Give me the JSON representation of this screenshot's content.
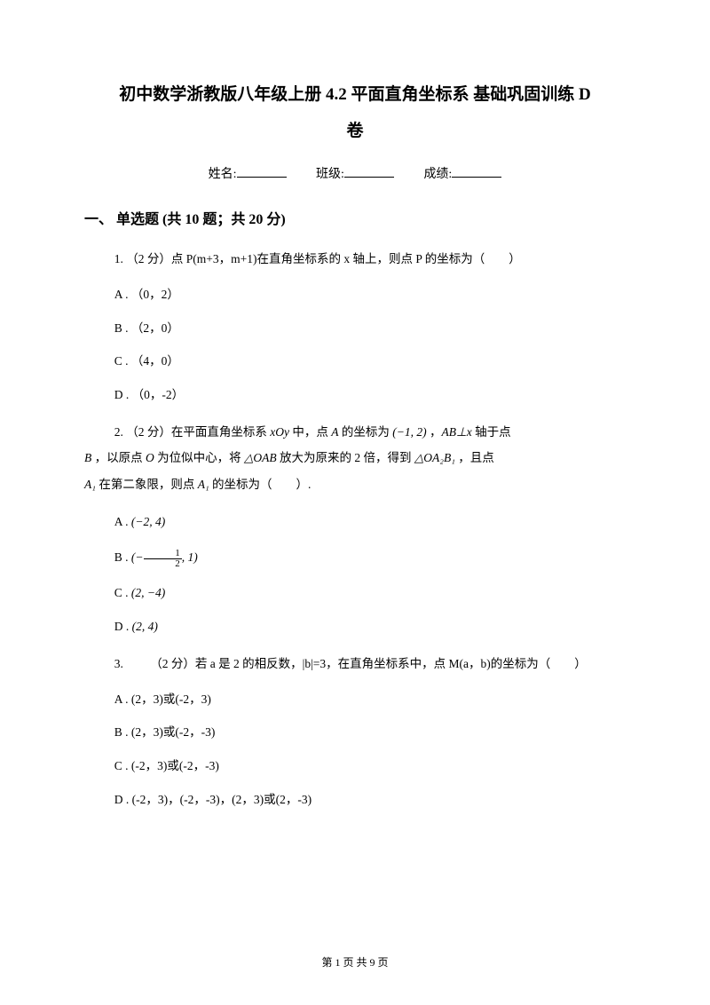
{
  "title": {
    "line1": "初中数学浙教版八年级上册 4.2 平面直角坐标系 基础巩固训练 D",
    "line2": "卷"
  },
  "info": {
    "name_label": "姓名:",
    "class_label": "班级:",
    "score_label": "成绩:"
  },
  "section1": {
    "title": "一、 单选题 (共 10 题；共 20 分)"
  },
  "q1": {
    "text": "1.  （2 分）点 P(m+3，m+1)在直角坐标系的 x 轴上，则点 P 的坐标为（  ）",
    "optA": "A .  （0，2）",
    "optB": "B .  （2，0）",
    "optC": "C .  （4，0）",
    "optD": "D .  （0，-2）"
  },
  "q2": {
    "part1": "2.  （2 分）在平面直角坐标系 ",
    "xoy": "xOy",
    "part2": " 中，点 ",
    "A": "A",
    "part3": " 的坐标为 ",
    "coord1": "(−1, 2)",
    "part4": " ，",
    "ABperp": "AB⊥x",
    "part5": " 轴于点",
    "B": "B",
    "part6": "  ，以原点 ",
    "O": "O",
    "part7": "  为位似中心，将  ",
    "OAB": "△OAB",
    "part8": "  放大为原来的  2  倍，得到  ",
    "OA2B1": "△OA₂B₁",
    "part9": "  ，且点",
    "A1_1": "A₁",
    "part10": " 在第二象限，则点 ",
    "A1_2": "A₁",
    "part11": " 的坐标为（  ）.",
    "optA_pre": "A .  ",
    "optA_val": "(−2, 4)",
    "optB_pre": "B .  ",
    "optB_val_l": "(−",
    "optB_val_r": ", 1)",
    "optC_pre": "C .  ",
    "optC_val": "(2, −4)",
    "optD_pre": "D .  ",
    "optD_val": "(2, 4)"
  },
  "q3": {
    "text": "3.   （2 分）若 a 是 2 的相反数，|b|=3，在直角坐标系中，点 M(a，b)的坐标为（  ）",
    "optA": "A .  (2，3)或(-2，3)",
    "optB": "B .  (2，3)或(-2，-3)",
    "optC": "C .  (-2，3)或(-2，-3)",
    "optD": "D .  (-2，3)，(-2，-3)，(2，3)或(2，-3)"
  },
  "footer": {
    "text": "第 1 页 共 9 页"
  }
}
